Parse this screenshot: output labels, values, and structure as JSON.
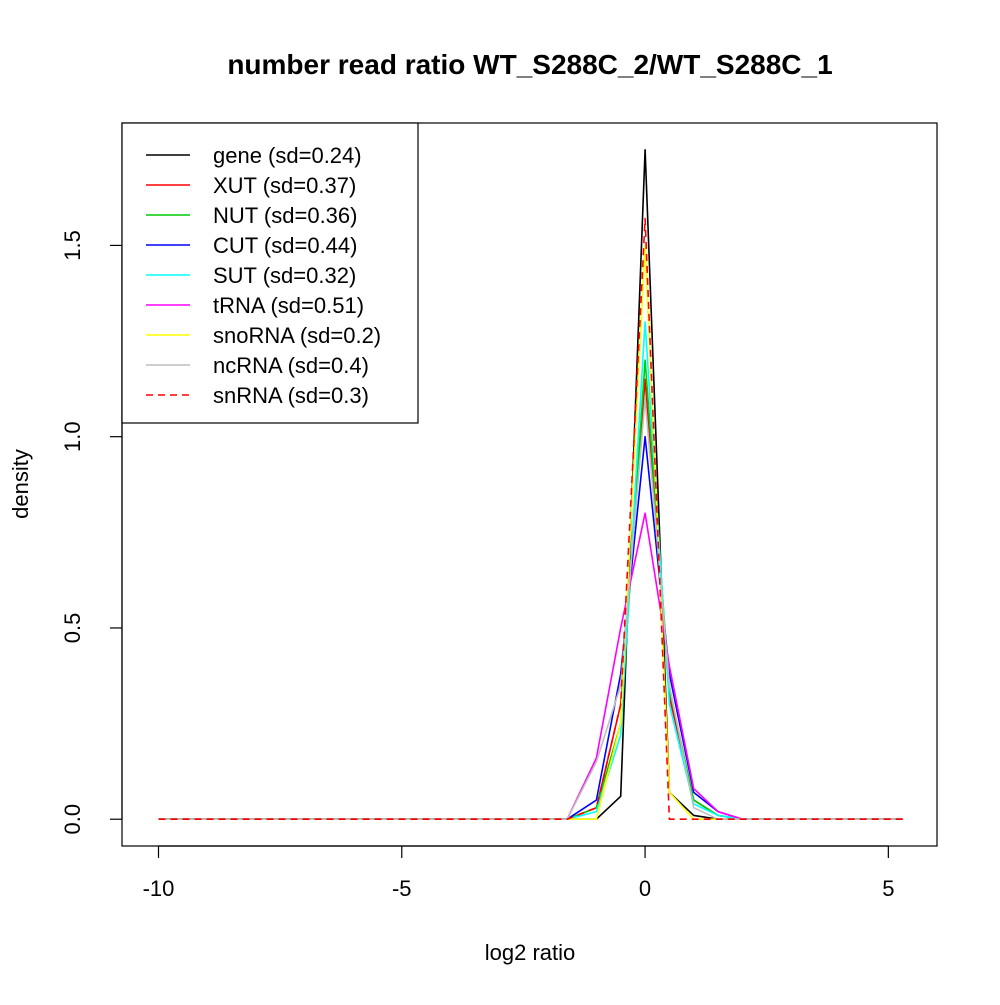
{
  "chart_data": {
    "type": "line",
    "title": "number read ratio WT_S288C_2/WT_S288C_1",
    "xlabel": "log2 ratio",
    "ylabel": "density",
    "xlim": [
      -10.75,
      6.0
    ],
    "ylim": [
      -0.07,
      1.82
    ],
    "x_ticks": [
      -10,
      -5,
      0,
      5
    ],
    "x_tick_labels": [
      "-10",
      "-5",
      "0",
      "5"
    ],
    "y_ticks": [
      0.0,
      0.5,
      1.0,
      1.5
    ],
    "y_tick_labels": [
      "0.0",
      "0.5",
      "1.0",
      "1.5"
    ],
    "grid": false,
    "legend_position": "top-left",
    "series": [
      {
        "name": "gene (sd=0.24)",
        "color": "#000000",
        "dash": "solid",
        "x": [
          -10,
          -1.5,
          -1.0,
          -0.5,
          0.0,
          0.5,
          1.0,
          1.5,
          2.0,
          5.3
        ],
        "y": [
          0,
          0,
          0,
          0.06,
          1.75,
          0.07,
          0.01,
          0,
          0,
          0
        ]
      },
      {
        "name": "XUT (sd=0.37)",
        "color": "#ff0000",
        "dash": "solid",
        "x": [
          -10,
          -1.6,
          -1.0,
          -0.5,
          0.0,
          0.5,
          1.0,
          1.5,
          2.0,
          5.3
        ],
        "y": [
          0,
          0,
          0.03,
          0.3,
          1.15,
          0.32,
          0.05,
          0.01,
          0,
          0
        ]
      },
      {
        "name": "NUT (sd=0.36)",
        "color": "#00cc00",
        "dash": "solid",
        "x": [
          -10,
          -1.6,
          -1.0,
          -0.5,
          0.0,
          0.5,
          1.0,
          1.5,
          2.0,
          5.3
        ],
        "y": [
          0,
          0,
          0.03,
          0.25,
          1.2,
          0.34,
          0.05,
          0.01,
          0,
          0
        ]
      },
      {
        "name": "CUT (sd=0.44)",
        "color": "#0000ff",
        "dash": "solid",
        "x": [
          -10,
          -1.6,
          -1.0,
          -0.5,
          0.0,
          0.5,
          1.0,
          1.5,
          2.0,
          5.3
        ],
        "y": [
          0,
          0,
          0.05,
          0.38,
          1.0,
          0.38,
          0.07,
          0.02,
          0,
          0
        ]
      },
      {
        "name": "SUT (sd=0.32)",
        "color": "#00ffff",
        "dash": "solid",
        "x": [
          -10,
          -1.6,
          -1.0,
          -0.5,
          0.0,
          0.5,
          1.0,
          1.5,
          2.0,
          5.3
        ],
        "y": [
          0,
          0,
          0.02,
          0.22,
          1.3,
          0.3,
          0.04,
          0.01,
          0,
          0
        ]
      },
      {
        "name": "tRNA (sd=0.51)",
        "color": "#ff00ff",
        "dash": "solid",
        "x": [
          -10,
          -1.6,
          -1.0,
          -0.5,
          0.0,
          0.5,
          1.0,
          1.5,
          2.0,
          5.3
        ],
        "y": [
          0,
          0,
          0.16,
          0.5,
          0.8,
          0.4,
          0.08,
          0.02,
          0,
          0
        ]
      },
      {
        "name": "snoRNA (sd=0.2)",
        "color": "#ffff00",
        "dash": "solid",
        "x": [
          -10,
          -1.6,
          -1.0,
          -0.5,
          0.0,
          0.5,
          1.0,
          1.5,
          2.0,
          5.3
        ],
        "y": [
          0,
          0,
          0,
          0.25,
          1.5,
          0.07,
          0,
          0,
          0,
          0
        ]
      },
      {
        "name": "ncRNA (sd=0.4)",
        "color": "#bebebe",
        "dash": "solid",
        "x": [
          -10,
          -1.6,
          -1.0,
          -0.5,
          0.0,
          0.5,
          1.0,
          1.5,
          2.0,
          5.3
        ],
        "y": [
          0,
          0,
          0.15,
          0.35,
          1.1,
          0.35,
          0.03,
          0,
          0,
          0
        ]
      },
      {
        "name": "snRNA (sd=0.3)",
        "color": "#ff0000",
        "dash": "dashed",
        "x": [
          -10,
          -1.6,
          -1.0,
          -0.5,
          0.0,
          0.5,
          0.55,
          1.0,
          5.3
        ],
        "y": [
          0,
          0,
          0.03,
          0.3,
          1.57,
          0.0,
          0,
          0,
          0
        ]
      }
    ]
  }
}
